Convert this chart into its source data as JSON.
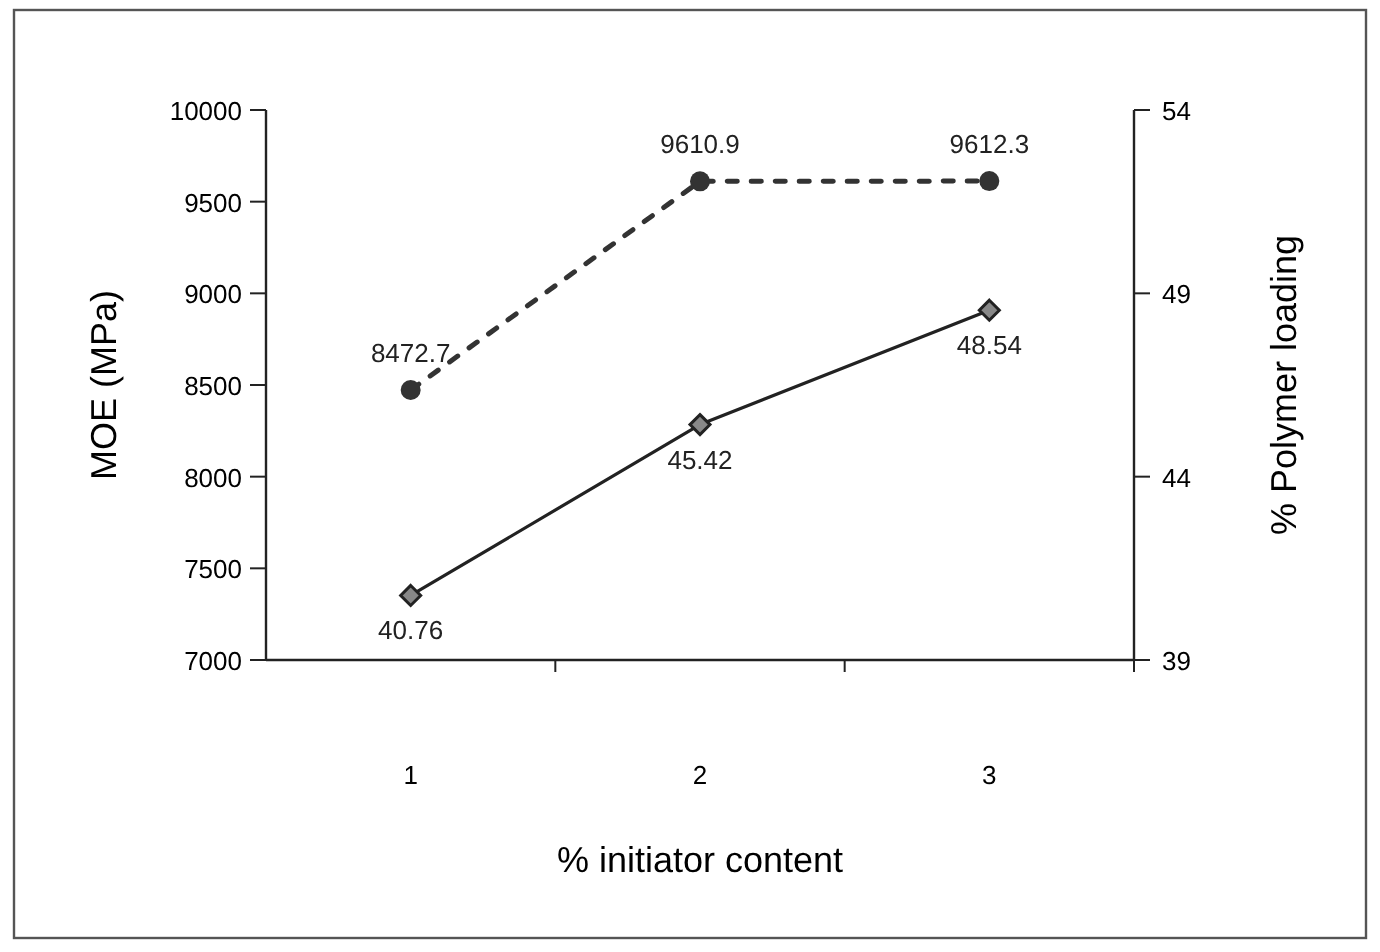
{
  "chart_data": {
    "type": "line",
    "xlabel": "% initiator content",
    "ylabel": "MOE (MPa)",
    "y2label": "% Polymer loading",
    "categories": [
      "1",
      "2",
      "3"
    ],
    "series": [
      {
        "values": [
          8472.7,
          9610.9,
          9612.3
        ],
        "color": "#333333",
        "line_style": "dashed",
        "marker": "circle"
      },
      {
        "values": [
          40.76,
          45.42,
          48.54
        ],
        "color": "#222222",
        "line_style": "solid",
        "marker": "diamond",
        "axis": "y2"
      }
    ],
    "ylim": [
      7000,
      10000
    ],
    "yticks": [
      7000,
      7500,
      8000,
      8500,
      9000,
      9500,
      10000
    ],
    "y2lim": [
      39,
      54
    ],
    "y2ticks": [
      39,
      44,
      49,
      54
    ],
    "data_labels": true,
    "grid": false
  }
}
